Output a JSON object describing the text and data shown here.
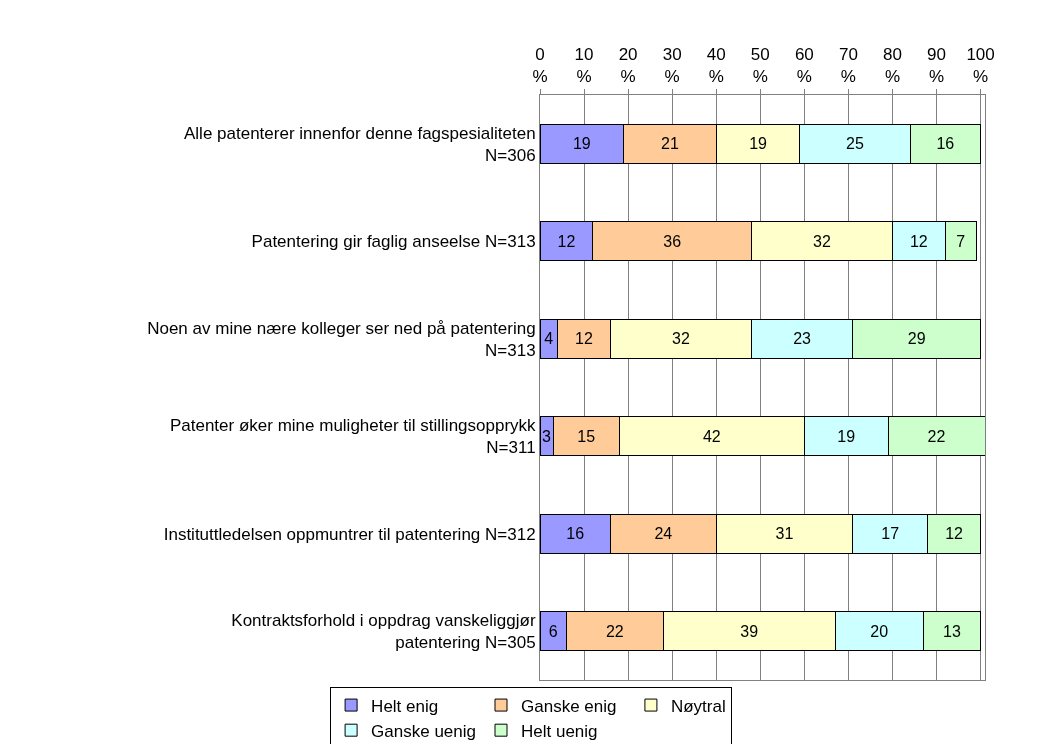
{
  "chart_data": {
    "type": "bar",
    "orientation": "horizontal",
    "stacked": true,
    "data_labels": true,
    "grid": "x",
    "legend": "bottom",
    "categories": [
      "Alle patenterer innenfor denne fagspesialiteten\nN=306",
      "Patentering gir faglig anseelse N=313",
      "Noen av mine nære kolleger ser ned på patentering\nN=313",
      "Patenter øker mine muligheter til stillingsopprykk\nN=311",
      "Instituttledelsen oppmuntrer til patentering N=312",
      "Kontraktsforhold i oppdrag vanskeliggjør\npatentering N=305"
    ],
    "xlim": [
      0,
      101
    ],
    "xticks": [
      {
        "value": 0,
        "label": "0\n%"
      },
      {
        "value": 10,
        "label": "10\n%"
      },
      {
        "value": 20,
        "label": "20\n%"
      },
      {
        "value": 30,
        "label": "30\n%"
      },
      {
        "value": 40,
        "label": "40\n%"
      },
      {
        "value": 50,
        "label": "50\n%"
      },
      {
        "value": 60,
        "label": "60\n%"
      },
      {
        "value": 70,
        "label": "70\n%"
      },
      {
        "value": 80,
        "label": "80\n%"
      },
      {
        "value": 90,
        "label": "90\n%"
      },
      {
        "value": 100,
        "label": "100\n%"
      }
    ],
    "series": [
      {
        "name": "Helt enig",
        "color": "#9999ff",
        "values": [
          19,
          12,
          4,
          3,
          16,
          6
        ]
      },
      {
        "name": "Ganske enig",
        "color": "#ffcc99",
        "values": [
          21,
          36,
          12,
          15,
          24,
          22
        ]
      },
      {
        "name": "Nøytral",
        "color": "#ffffcc",
        "values": [
          19,
          32,
          32,
          42,
          31,
          39
        ]
      },
      {
        "name": "Ganske uenig",
        "color": "#ccffff",
        "values": [
          25,
          12,
          23,
          19,
          17,
          20
        ]
      },
      {
        "name": "Helt uenig",
        "color": "#ccffcc",
        "values": [
          16,
          7,
          29,
          22,
          12,
          13
        ]
      }
    ]
  }
}
